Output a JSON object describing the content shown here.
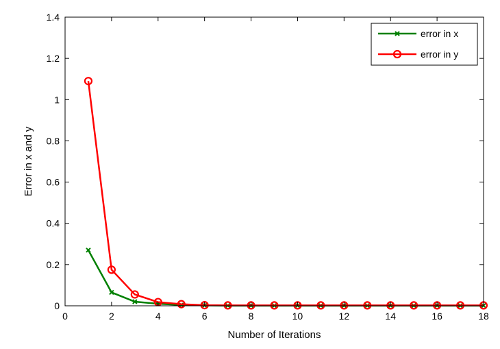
{
  "chart_data": {
    "type": "line",
    "xlabel": "Number of Iterations",
    "ylabel": "Error in x and y",
    "xlim": [
      0,
      18
    ],
    "ylim": [
      0,
      1.4
    ],
    "xticks": [
      0,
      2,
      4,
      6,
      8,
      10,
      12,
      14,
      16,
      18
    ],
    "yticks": [
      0,
      0.2,
      0.4,
      0.6,
      0.8,
      1,
      1.2,
      1.4
    ],
    "grid": false,
    "legend_position": "top-right",
    "x": [
      1,
      2,
      3,
      4,
      5,
      6,
      7,
      8,
      9,
      10,
      11,
      12,
      13,
      14,
      15,
      16,
      17,
      18
    ],
    "series": [
      {
        "name": "error in x",
        "color": "#008000",
        "marker": "x",
        "values": [
          0.27,
          0.065,
          0.02,
          0.01,
          0.004,
          0.002,
          0.001,
          0.001,
          0.001,
          0.001,
          0.001,
          0.001,
          0.001,
          0.001,
          0.001,
          0.001,
          0.001,
          0.001
        ]
      },
      {
        "name": "error in y",
        "color": "#ff0000",
        "marker": "circle",
        "values": [
          1.09,
          0.175,
          0.055,
          0.018,
          0.008,
          0.003,
          0.002,
          0.002,
          0.002,
          0.002,
          0.002,
          0.002,
          0.002,
          0.002,
          0.002,
          0.002,
          0.002,
          0.002
        ]
      }
    ]
  }
}
